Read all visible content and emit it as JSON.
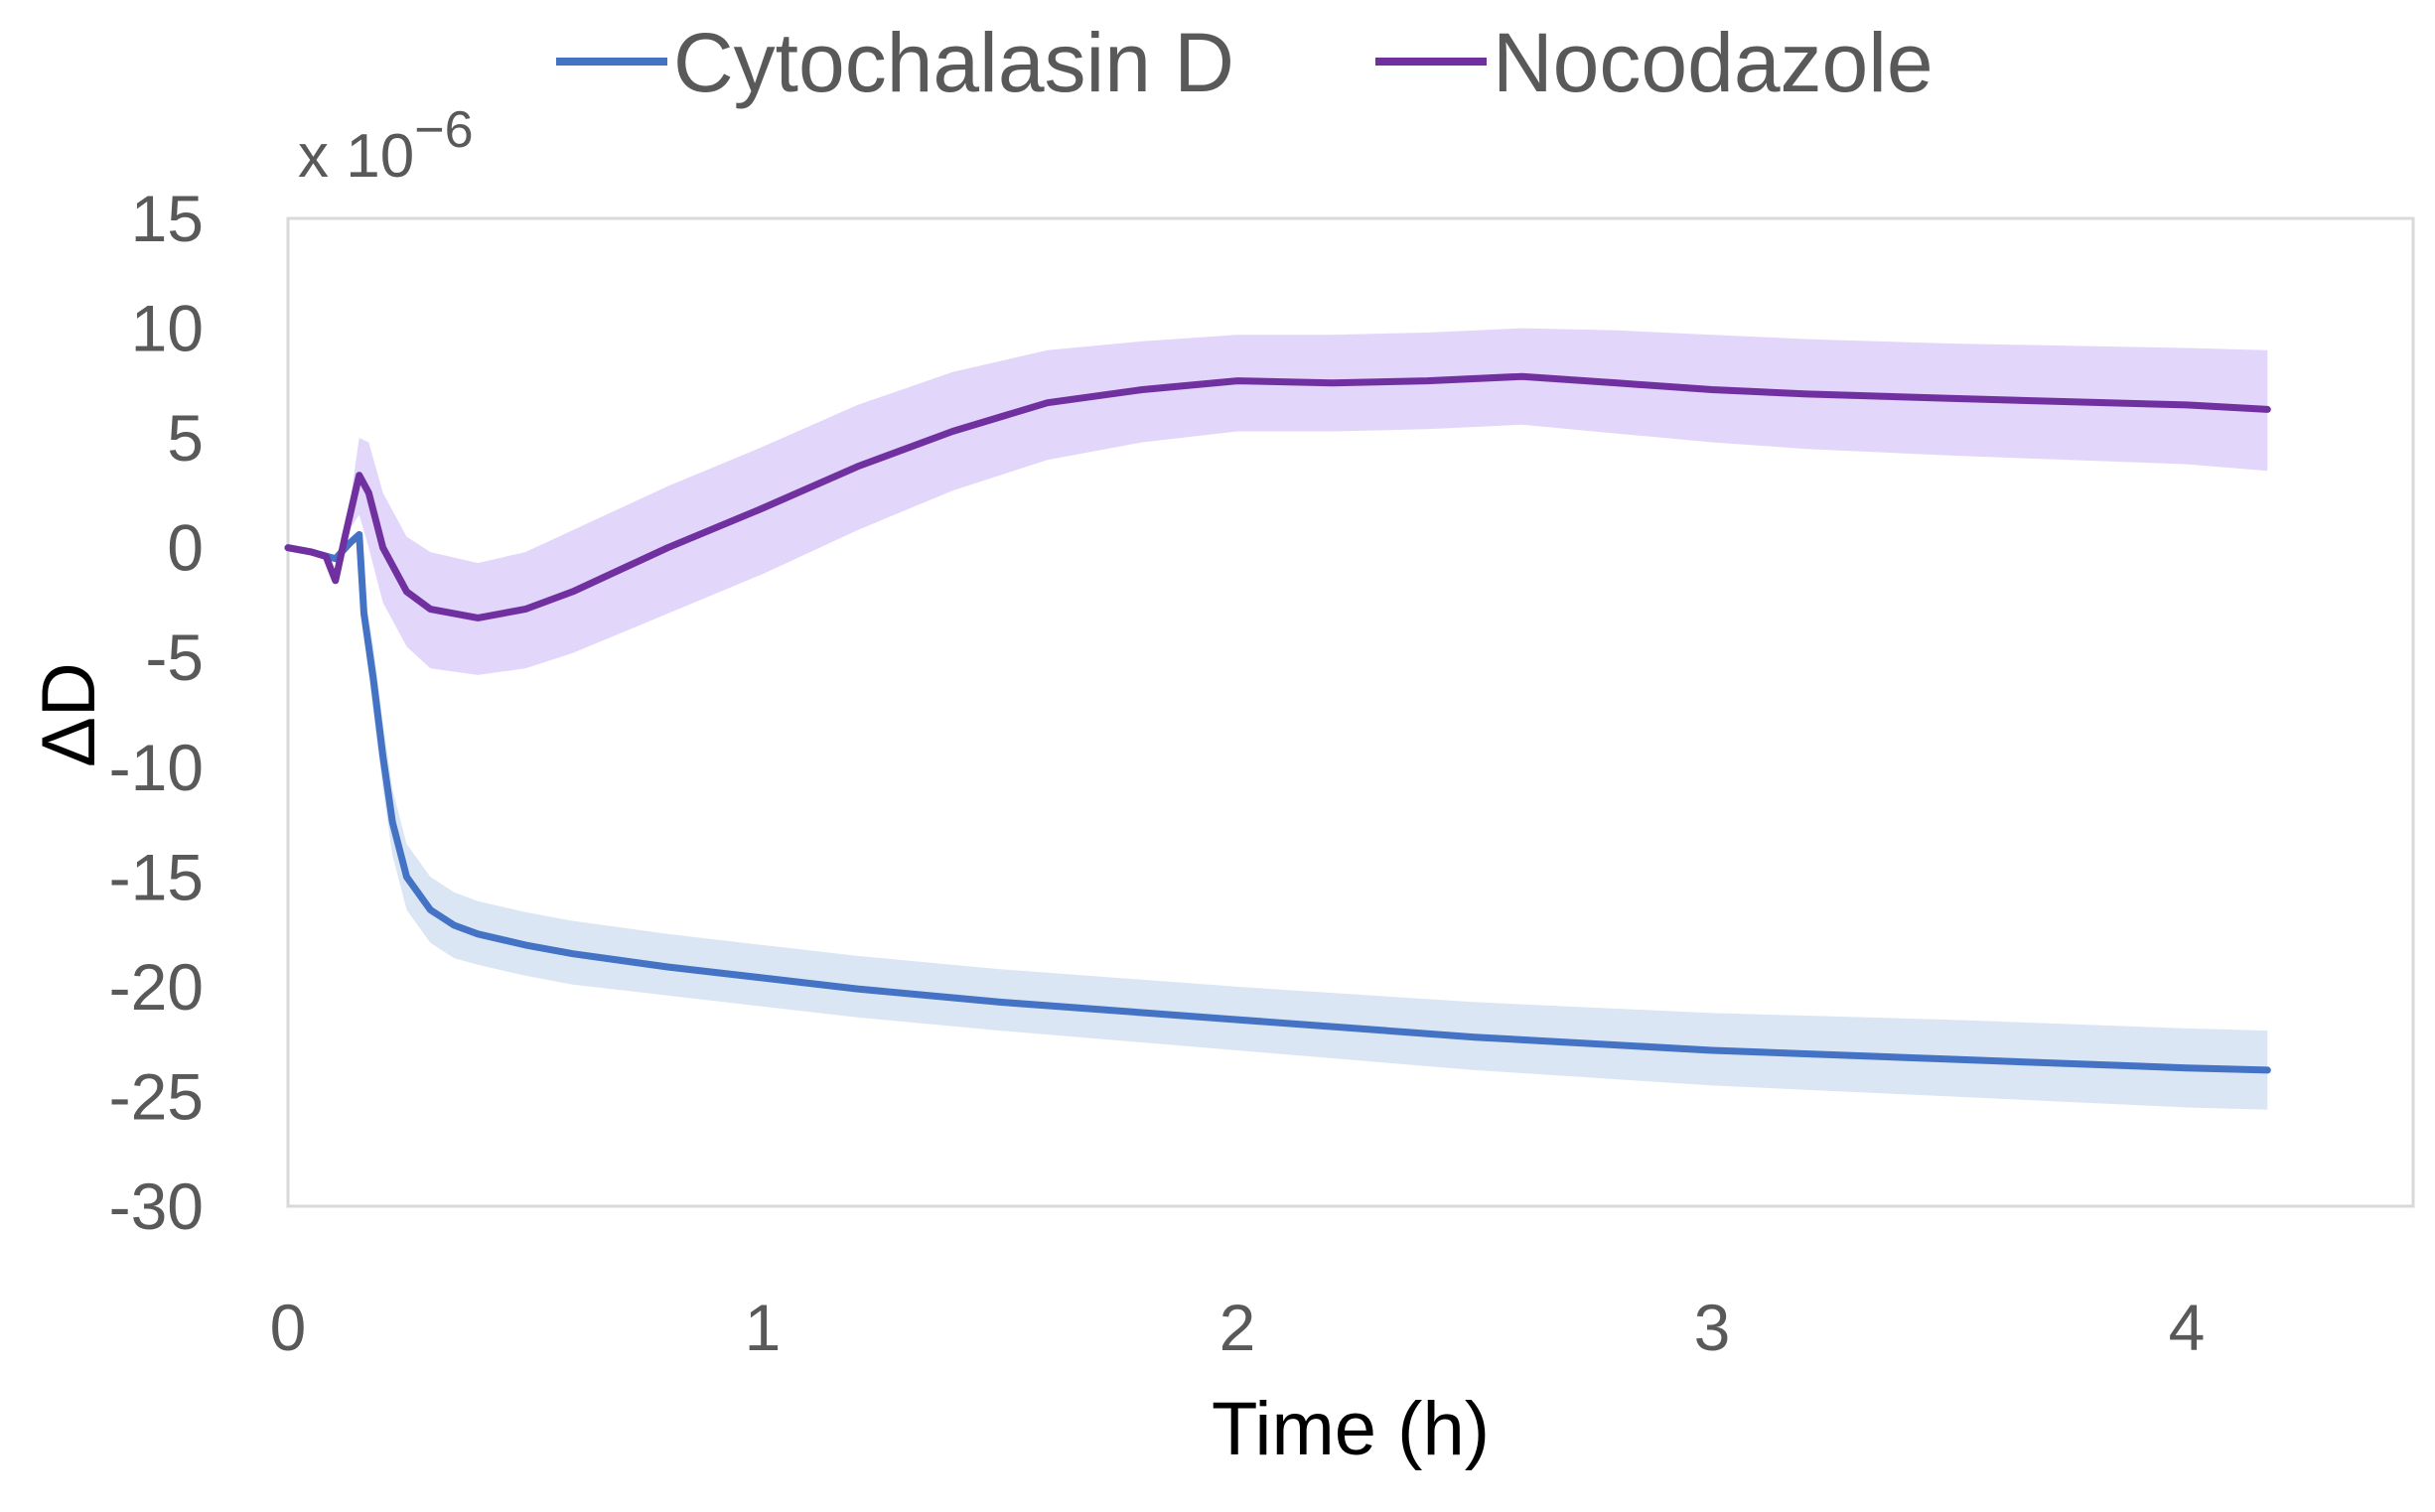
{
  "chart_data": {
    "type": "line",
    "title": "",
    "xlabel": "Time (h)",
    "ylabel": "ΔD",
    "y_multiplier_label": "x 10",
    "y_multiplier_exponent": "−6",
    "xlim": [
      0,
      4.5
    ],
    "ylim": [
      -30,
      15
    ],
    "x_ticks": [
      0,
      1,
      2,
      3,
      4
    ],
    "x_tick_labels": [
      "0",
      "1",
      "2",
      "3",
      "4"
    ],
    "y_ticks": [
      15,
      10,
      5,
      0,
      -5,
      -10,
      -15,
      -20,
      -25,
      -30
    ],
    "y_tick_labels": [
      "15",
      "10",
      "5",
      "0",
      "-5",
      "-10",
      "-15",
      "-20",
      "-25",
      "-30"
    ],
    "grid": false,
    "legend_position": "top-center",
    "series": [
      {
        "name": "Cytochalasin D",
        "color": "#4472C4",
        "band_color": "#DAE6F4",
        "x": [
          0,
          0.05,
          0.1,
          0.13,
          0.15,
          0.16,
          0.18,
          0.2,
          0.22,
          0.25,
          0.3,
          0.35,
          0.4,
          0.5,
          0.6,
          0.8,
          1.0,
          1.2,
          1.5,
          2.0,
          2.5,
          3.0,
          3.5,
          4.0,
          4.17
        ],
        "values": [
          0,
          -0.2,
          -0.5,
          0.2,
          0.6,
          -3,
          -6,
          -9.5,
          -12.5,
          -15,
          -16.5,
          -17.2,
          -17.6,
          -18.1,
          -18.5,
          -19.1,
          -19.6,
          -20.1,
          -20.7,
          -21.5,
          -22.3,
          -22.9,
          -23.3,
          -23.7,
          -23.8
        ],
        "band_lower": [
          0,
          -0.2,
          -0.5,
          0.2,
          0.6,
          -4,
          -7.5,
          -11,
          -14,
          -16.5,
          -18,
          -18.7,
          -19,
          -19.5,
          -19.9,
          -20.4,
          -20.9,
          -21.4,
          -22,
          -22.9,
          -23.8,
          -24.5,
          -25,
          -25.5,
          -25.6
        ],
        "band_upper": [
          0,
          -0.2,
          -0.5,
          0.2,
          0.6,
          -2,
          -4.5,
          -8,
          -11,
          -13.5,
          -15,
          -15.7,
          -16.1,
          -16.6,
          -17,
          -17.6,
          -18.1,
          -18.6,
          -19.2,
          -20,
          -20.7,
          -21.2,
          -21.5,
          -21.9,
          -22
        ]
      },
      {
        "name": "Nocodazole",
        "color": "#7030A0",
        "band_color": "#E2D6FA",
        "x": [
          0,
          0.05,
          0.08,
          0.1,
          0.12,
          0.15,
          0.17,
          0.2,
          0.25,
          0.3,
          0.4,
          0.5,
          0.6,
          0.8,
          1.0,
          1.2,
          1.4,
          1.6,
          1.8,
          2.0,
          2.2,
          2.4,
          2.6,
          2.8,
          3.0,
          3.2,
          3.5,
          4.0,
          4.17
        ],
        "values": [
          0,
          -0.2,
          -0.4,
          -1.5,
          0.5,
          3.3,
          2.5,
          0,
          -2,
          -2.8,
          -3.2,
          -2.8,
          -2,
          0,
          1.8,
          3.7,
          5.3,
          6.6,
          7.2,
          7.6,
          7.5,
          7.6,
          7.8,
          7.5,
          7.2,
          7,
          6.8,
          6.5,
          6.3
        ],
        "band_lower": [
          0,
          -0.2,
          -0.4,
          -1.5,
          0.5,
          1.5,
          0,
          -2.5,
          -4.5,
          -5.5,
          -5.8,
          -5.5,
          -4.8,
          -3,
          -1.2,
          0.8,
          2.6,
          4,
          4.8,
          5.3,
          5.3,
          5.4,
          5.6,
          5.2,
          4.8,
          4.5,
          4.2,
          3.8,
          3.5
        ],
        "band_upper": [
          0,
          -0.2,
          -0.4,
          -1.5,
          0.5,
          5,
          4.8,
          2.5,
          0.5,
          -0.2,
          -0.7,
          -0.2,
          0.8,
          2.8,
          4.6,
          6.5,
          8,
          9,
          9.4,
          9.7,
          9.7,
          9.8,
          10,
          9.9,
          9.7,
          9.5,
          9.3,
          9.1,
          9
        ]
      }
    ]
  }
}
